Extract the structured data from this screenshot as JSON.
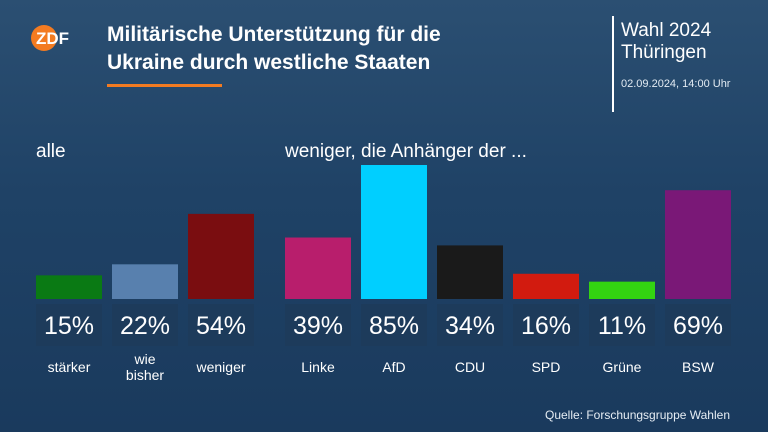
{
  "header": {
    "logo_text": "ZDF",
    "title_line1": "Militärische Unterstützung für die",
    "title_line2": "Ukraine durch westliche Staaten",
    "election_line1": "Wahl 2024",
    "election_line2": "Thüringen",
    "timestamp": "02.09.2024, 14:00 Uhr"
  },
  "colors": {
    "background": "#1f4266",
    "accent": "#f37b21",
    "label_box": "#1d3b5b"
  },
  "chart_data": {
    "type": "bar",
    "groups": [
      {
        "label": "alle",
        "categories": [
          "stärker",
          "wie bisher",
          "weniger"
        ],
        "values": [
          15,
          22,
          54
        ],
        "value_labels": [
          "15%",
          "22%",
          "54%"
        ],
        "colors": [
          "#0a7a14",
          "#5880ae",
          "#7a0d10"
        ]
      },
      {
        "label": "weniger, die Anhänger der ...",
        "categories": [
          "Linke",
          "AfD",
          "CDU",
          "SPD",
          "Grüne",
          "BSW"
        ],
        "values": [
          39,
          85,
          34,
          16,
          11,
          69
        ],
        "value_labels": [
          "39%",
          "85%",
          "34%",
          "16%",
          "11%",
          "69%"
        ],
        "colors": [
          "#b81e6c",
          "#00cfff",
          "#1a1a1a",
          "#d21b0f",
          "#33d411",
          "#7a1877"
        ]
      }
    ],
    "ylim": [
      0,
      85
    ]
  },
  "footer": {
    "source": "Quelle: Forschungsgruppe Wahlen"
  }
}
